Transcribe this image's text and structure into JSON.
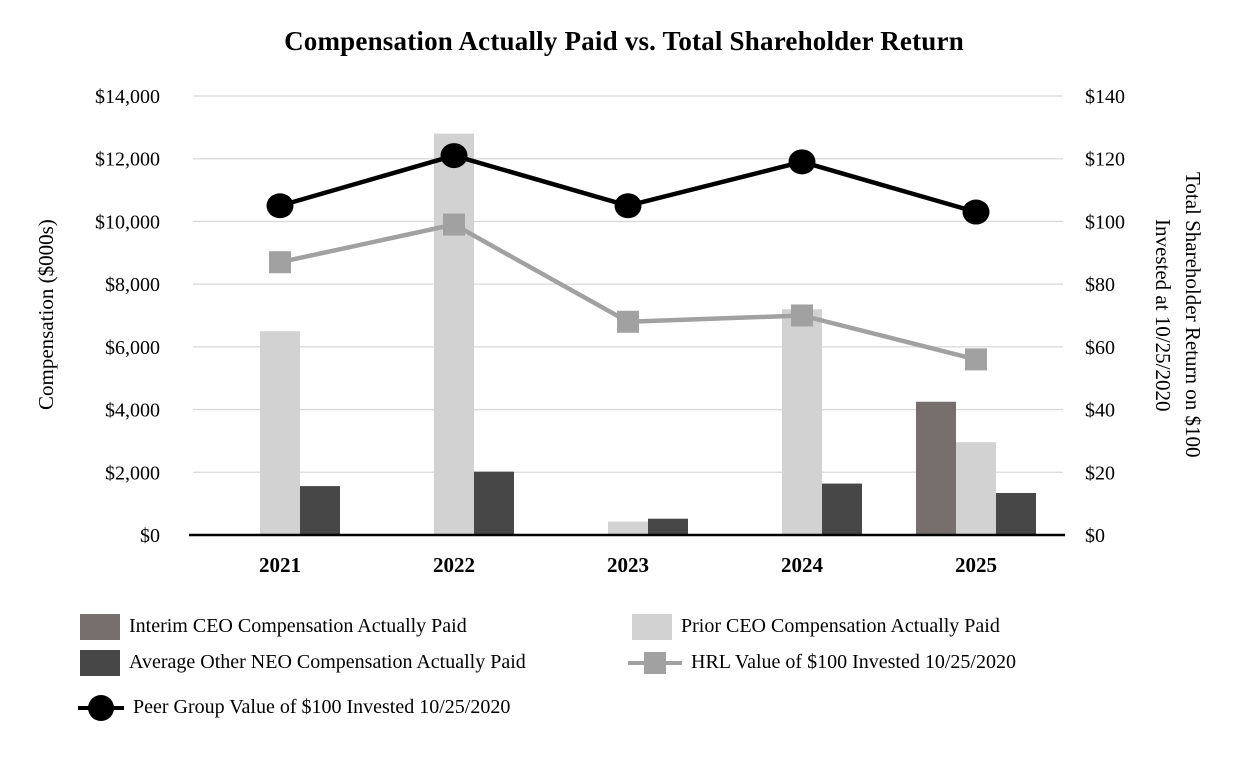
{
  "title": "Compensation Actually Paid vs. Total Shareholder Return",
  "left_axis": {
    "label": "Compensation ($000s)",
    "ticks": [
      "$0",
      "$2,000",
      "$4,000",
      "$6,000",
      "$8,000",
      "$10,000",
      "$12,000",
      "$14,000"
    ]
  },
  "right_axis": {
    "title_line1": "Total Shareholder Return on $100",
    "title_line2": "Invested at 10/25/2020",
    "ticks": [
      "$0",
      "$20",
      "$40",
      "$60",
      "$80",
      "$100",
      "$120",
      "$140"
    ]
  },
  "x_axis": {
    "labels": [
      "2021",
      "2022",
      "2023",
      "2024",
      "2025"
    ]
  },
  "colors": {
    "background": "#ffffff",
    "gridline": "#d9d9d9",
    "axis_line": "#000000"
  },
  "chart_data": {
    "type": "bar",
    "subtype": "clustered-bar-with-lines-combo",
    "title": "Compensation Actually Paid vs. Total Shareholder Return",
    "categories": [
      "2021",
      "2022",
      "2023",
      "2024",
      "2025"
    ],
    "left_ylabel": "Compensation ($000s)",
    "right_ylabel": "Total Shareholder Return on $100 Invested at 10/25/2020",
    "left_ylim": [
      0,
      14000
    ],
    "right_ylim": [
      0,
      140
    ],
    "left_tick_step": 2000,
    "right_tick_step": 20,
    "grid": true,
    "legend_position": "bottom-left",
    "series": [
      {
        "key": "interim-ceo",
        "name": "Interim CEO Compensation Actually Paid",
        "type": "bar",
        "axis": "left",
        "color": "#766f6e",
        "values": [
          null,
          null,
          null,
          null,
          4250
        ]
      },
      {
        "key": "prior-ceo",
        "name": "Prior CEO Compensation Actually Paid",
        "type": "bar",
        "axis": "left",
        "color": "#d2d2d2",
        "values": [
          6500,
          12800,
          430,
          7200,
          2960
        ]
      },
      {
        "key": "avg-other-neo",
        "name": "Average Other NEO Compensation Actually Paid",
        "type": "bar",
        "axis": "left",
        "color": "#474747",
        "values": [
          1560,
          2020,
          520,
          1640,
          1340
        ]
      },
      {
        "key": "hrl-value",
        "name": "HRL Value of $100 Invested 10/25/2020",
        "type": "line",
        "axis": "right",
        "color": "#a1a1a1",
        "marker": "square",
        "values": [
          87,
          99,
          68,
          70,
          56
        ]
      },
      {
        "key": "peer-group-value",
        "name": "Peer Group Value of $100 Invested 10/25/2020",
        "type": "line",
        "axis": "right",
        "color": "#000000",
        "marker": "circle",
        "values": [
          105,
          121,
          105,
          119,
          103
        ]
      }
    ]
  }
}
